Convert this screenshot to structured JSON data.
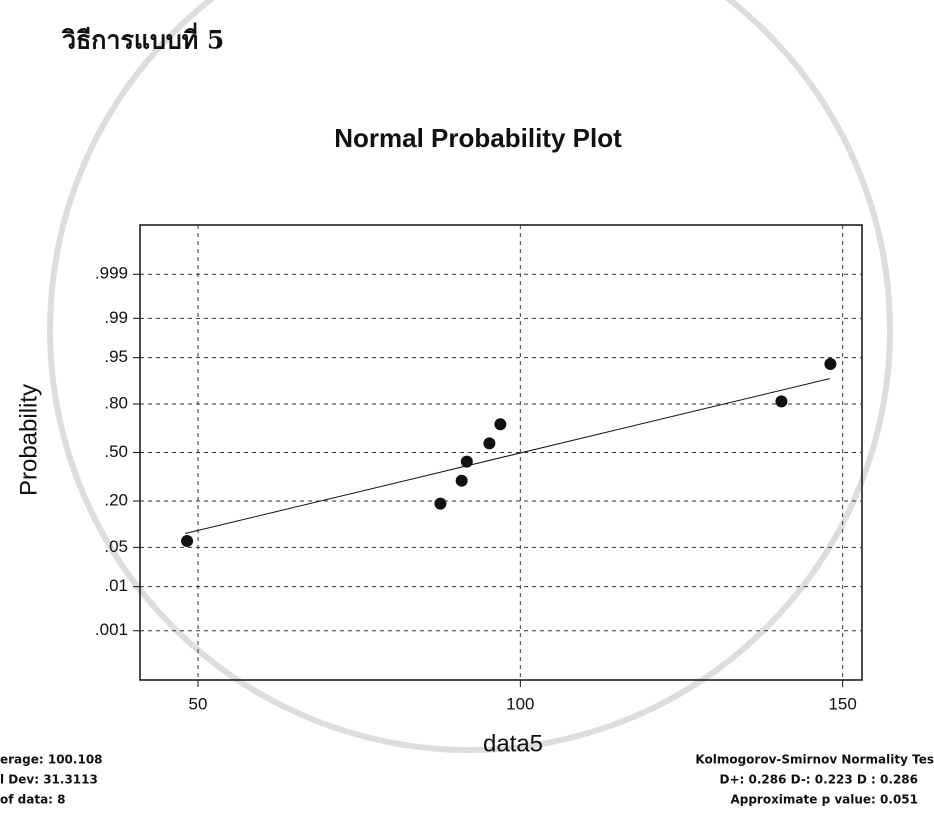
{
  "heading": "วิธีการแบบที่ 5",
  "chart_data": {
    "type": "normal-probability",
    "title": "Normal Probability Plot",
    "x_label": "data5",
    "y_label": "Probability",
    "x": [
      48.3,
      87.6,
      90.9,
      91.7,
      95.2,
      96.9,
      140.5,
      148.1
    ],
    "values": [
      0.0625,
      0.1875,
      0.3125,
      0.4375,
      0.5625,
      0.6875,
      0.8125,
      0.9375
    ],
    "color": "#111111",
    "fit_line": {
      "x": [
        48,
        148
      ],
      "values": [
        0.08,
        0.9
      ]
    },
    "xlim": [
      41,
      153
    ],
    "xticks": [
      50,
      100,
      150
    ],
    "ylim": [
      4e-05,
      0.99996
    ],
    "yticks": [
      {
        "value": 0.001,
        "label": ".001"
      },
      {
        "value": 0.01,
        "label": ".01"
      },
      {
        "value": 0.05,
        "label": ".05"
      },
      {
        "value": 0.2,
        "label": ".20"
      },
      {
        "value": 0.5,
        "label": ".50"
      },
      {
        "value": 0.8,
        "label": ".80"
      },
      {
        "value": 0.95,
        "label": ".95"
      },
      {
        "value": 0.99,
        "label": ".99"
      },
      {
        "value": 0.999,
        "label": ".999"
      }
    ],
    "grid": true
  },
  "stats_left": [
    "erage: 100.108",
    "l Dev: 31.3113",
    "of data: 8"
  ],
  "stats_right": [
    "Kolmogorov-Smirnov Normality Tes",
    "D+: 0.286  D-: 0.223  D : 0.286",
    "Approximate p value: 0.051"
  ]
}
